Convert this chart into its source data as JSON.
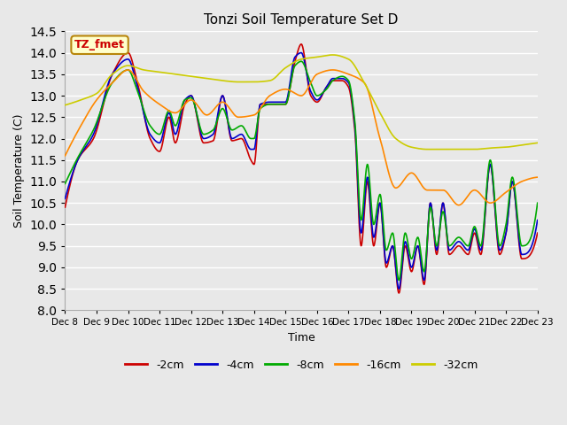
{
  "title": "Tonzi Soil Temperature Set D",
  "xlabel": "Time",
  "ylabel": "Soil Temperature (C)",
  "ylim": [
    8.0,
    14.5
  ],
  "background_color": "#e8e8e8",
  "plot_bg_color": "#e8e8e8",
  "grid_color": "white",
  "label_box_text": "TZ_fmet",
  "label_box_bg": "#ffffcc",
  "label_box_border": "#b8860b",
  "x_tick_labels": [
    "Dec 8",
    "Dec 9",
    "Dec 10",
    "Dec 11",
    "Dec 12",
    "Dec 13",
    "Dec 14",
    "Dec 15",
    "Dec 16",
    "Dec 17",
    "Dec 18",
    "Dec 19",
    "Dec 20",
    "Dec 21",
    "Dec 22",
    "Dec 23"
  ],
  "series": {
    "-2cm": {
      "color": "#cc0000",
      "lw": 1.2
    },
    "-4cm": {
      "color": "#0000cc",
      "lw": 1.2
    },
    "-8cm": {
      "color": "#00aa00",
      "lw": 1.2
    },
    "-16cm": {
      "color": "#ff8800",
      "lw": 1.2
    },
    "-32cm": {
      "color": "#cccc00",
      "lw": 1.2
    }
  },
  "legend_labels": [
    "-2cm",
    "-4cm",
    "-8cm",
    "-16cm",
    "-32cm"
  ],
  "legend_colors": [
    "#cc0000",
    "#0000cc",
    "#00aa00",
    "#ff8800",
    "#cccc00"
  ]
}
